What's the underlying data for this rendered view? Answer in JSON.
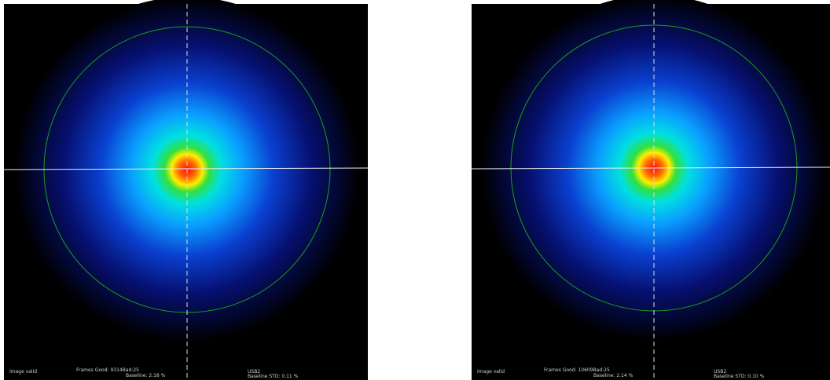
{
  "panels": [
    {
      "status": "Image valid",
      "frames": "Frames Good: 9314Bad:25",
      "baseline": "Baseline: 2.18 %",
      "port": "USB2",
      "baseline_std": "Baseline STD: 0.11 %"
    },
    {
      "status": "Image valid",
      "frames": "Frames Good: 10609Bad:25",
      "baseline": "Baseline: 2.14 %",
      "port": "USB2",
      "baseline_std": "Baseline STD: 0.10 %"
    }
  ]
}
